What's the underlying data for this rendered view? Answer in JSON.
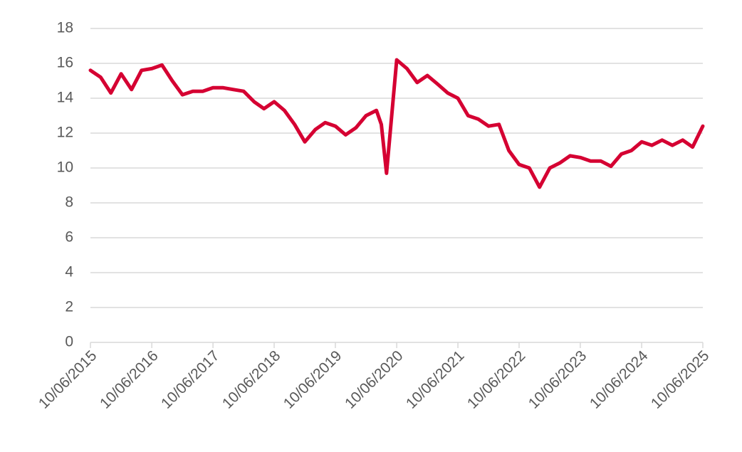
{
  "chart_data": {
    "type": "line",
    "x": [
      "10/06/2015",
      "10/08/2015",
      "10/10/2015",
      "10/12/2015",
      "10/02/2016",
      "10/04/2016",
      "10/06/2016",
      "10/08/2016",
      "10/10/2016",
      "10/12/2016",
      "10/02/2017",
      "10/04/2017",
      "10/06/2017",
      "10/08/2017",
      "10/10/2017",
      "10/12/2017",
      "10/02/2018",
      "10/04/2018",
      "10/06/2018",
      "10/08/2018",
      "10/10/2018",
      "10/12/2018",
      "10/02/2019",
      "10/04/2019",
      "10/06/2019",
      "10/08/2019",
      "10/10/2019",
      "10/12/2019",
      "10/02/2020",
      "10/03/2020",
      "10/04/2020",
      "10/06/2020",
      "10/08/2020",
      "10/10/2020",
      "10/12/2020",
      "10/02/2021",
      "10/04/2021",
      "10/06/2021",
      "10/08/2021",
      "10/10/2021",
      "10/12/2021",
      "10/02/2022",
      "10/04/2022",
      "10/06/2022",
      "10/08/2022",
      "10/10/2022",
      "10/12/2022",
      "10/02/2023",
      "10/04/2023",
      "10/06/2023",
      "10/08/2023",
      "10/10/2023",
      "10/12/2023",
      "10/02/2024",
      "10/04/2024",
      "10/06/2024",
      "10/08/2024",
      "10/10/2024",
      "10/12/2024",
      "10/02/2025",
      "10/04/2025",
      "10/06/2025"
    ],
    "values": [
      15.6,
      15.2,
      14.3,
      15.4,
      14.5,
      15.6,
      15.7,
      15.9,
      15.0,
      14.2,
      14.4,
      14.4,
      14.6,
      14.6,
      14.5,
      14.4,
      13.8,
      13.4,
      13.8,
      13.3,
      12.5,
      11.5,
      12.2,
      12.6,
      12.4,
      11.9,
      12.3,
      13.0,
      13.3,
      12.5,
      9.7,
      16.2,
      15.7,
      14.9,
      15.3,
      14.8,
      14.3,
      14.0,
      13.0,
      12.8,
      12.4,
      12.5,
      11.0,
      10.2,
      10.0,
      8.9,
      10.0,
      10.3,
      10.7,
      10.6,
      10.4,
      10.4,
      10.1,
      10.8,
      11.0,
      11.5,
      11.3,
      11.6,
      11.3,
      11.6,
      11.2,
      12.4
    ],
    "color": "#d50032",
    "xlim": [
      "10/06/2015",
      "10/06/2025"
    ],
    "xticks": [
      "10/06/2015",
      "10/06/2016",
      "10/06/2017",
      "10/06/2018",
      "10/06/2019",
      "10/06/2020",
      "10/06/2021",
      "10/06/2022",
      "10/06/2023",
      "10/06/2024",
      "10/06/2025"
    ],
    "ylim": [
      0,
      18
    ],
    "yticks": [
      0,
      2,
      4,
      6,
      8,
      10,
      12,
      14,
      16,
      18
    ],
    "grid": true
  }
}
